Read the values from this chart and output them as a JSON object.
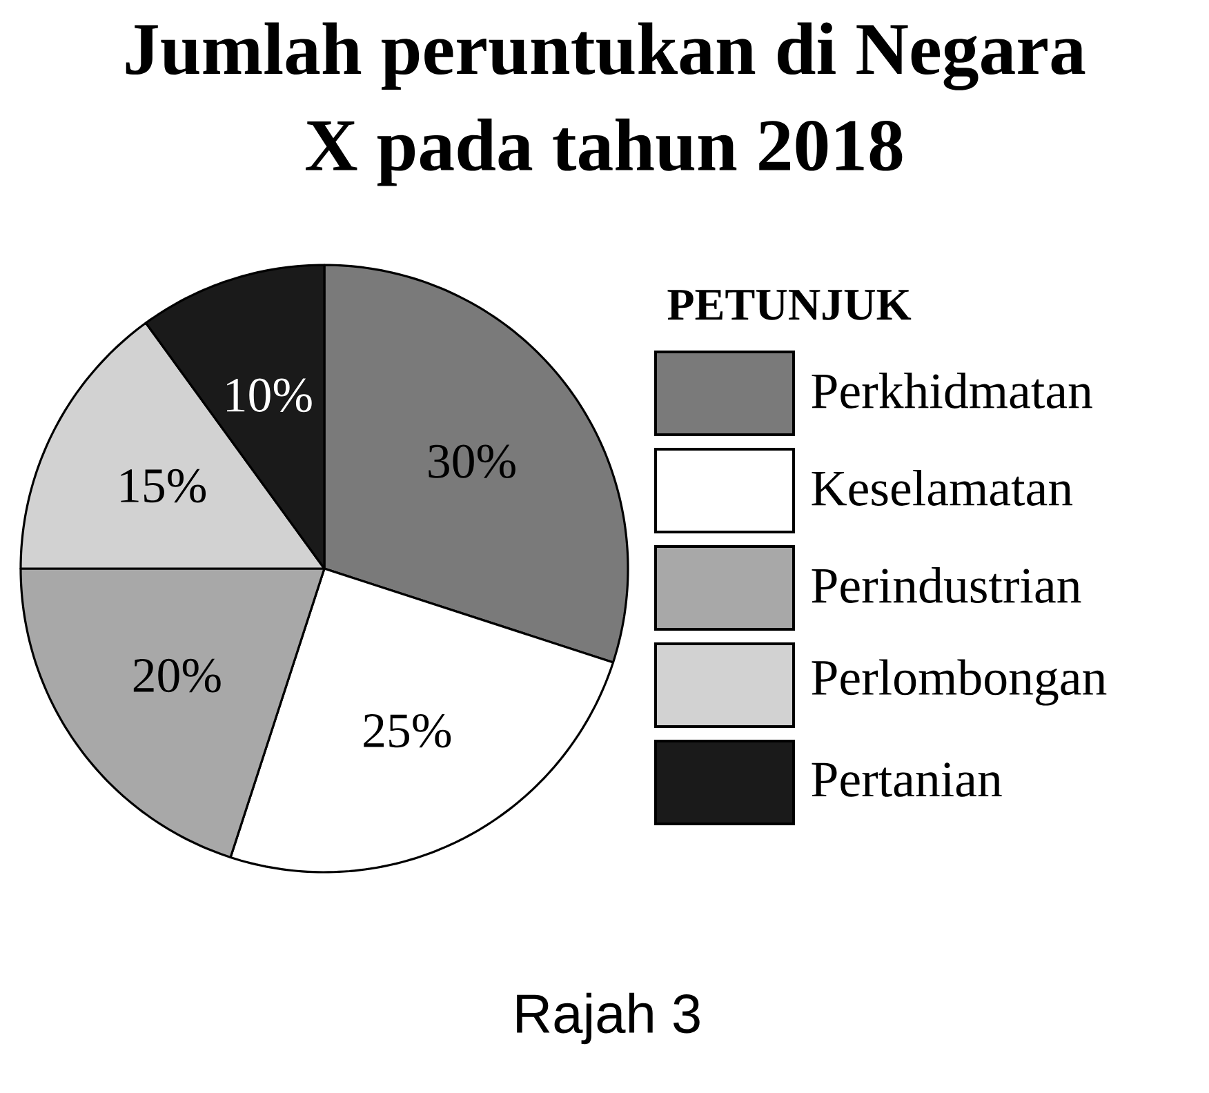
{
  "chart_data": {
    "type": "pie",
    "title": "Jumlah peruntukan di Negara X pada tahun 2018",
    "legend_title": "PETUNJUK",
    "categories": [
      "Perkhidmatan",
      "Keselamatan",
      "Perindustrian",
      "Perlombongan",
      "Pertanian"
    ],
    "values": [
      30,
      25,
      20,
      15,
      10
    ],
    "colors": [
      "#7a7a7a",
      "#ffffff",
      "#a8a8a8",
      "#d2d2d2",
      "#1a1a1a"
    ],
    "value_labels": [
      "30%",
      "25%",
      "20%",
      "15%",
      "10%"
    ],
    "legend": "right",
    "annotations": [
      "Rajah 3"
    ]
  }
}
